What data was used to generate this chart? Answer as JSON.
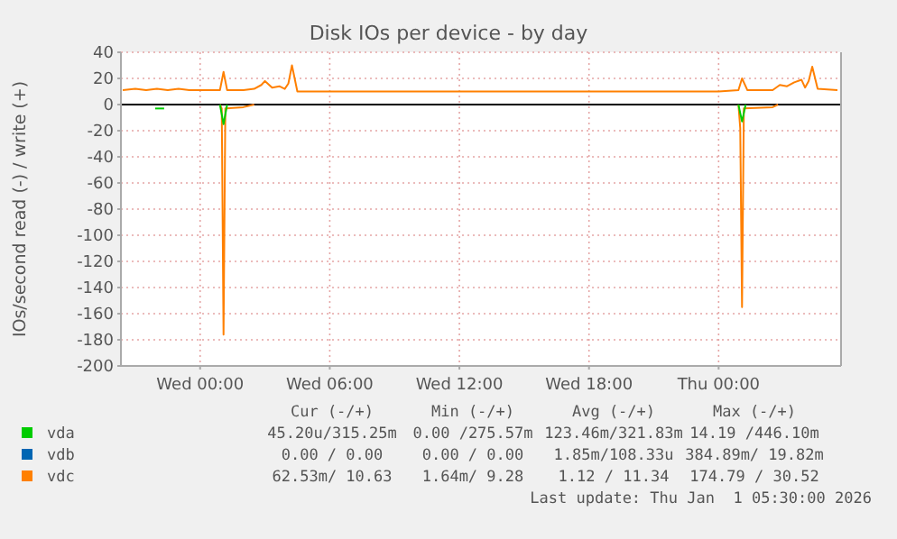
{
  "chart_data": {
    "type": "line",
    "title": "Disk IOs per device - by day",
    "ylabel": "IOs/second read (-) / write (+)",
    "xlim": [
      "2025-12-30T20:20",
      "2026-01-01T05:40"
    ],
    "xticks": [
      {
        "value": "2025-12-31T00:00",
        "label": "Wed 00:00"
      },
      {
        "value": "2025-12-31T06:00",
        "label": "Wed 06:00"
      },
      {
        "value": "2025-12-31T12:00",
        "label": "Wed 12:00"
      },
      {
        "value": "2025-12-31T18:00",
        "label": "Wed 18:00"
      },
      {
        "value": "2026-01-01T00:00",
        "label": "Thu 00:00"
      }
    ],
    "ylim": [
      -200,
      40
    ],
    "yticks": [
      -200,
      -180,
      -160,
      -140,
      -120,
      -100,
      -80,
      -60,
      -40,
      -20,
      0,
      20,
      40
    ],
    "grid": true,
    "legend": "bottom",
    "line_style": "solid",
    "marker": "none",
    "ref_lines": [
      {
        "axis": "y",
        "value": 0,
        "color": "#000000"
      }
    ],
    "series": [
      {
        "name": "vda",
        "color": "#00cc00",
        "x": [
          "2025-12-31T00:55",
          "2025-12-31T01:05",
          "2025-12-31T01:15",
          "2025-12-31T12:00",
          "2026-01-01T00:55",
          "2026-01-01T01:05",
          "2026-01-01T01:15"
        ],
        "values": [
          0,
          -15,
          0,
          null,
          0,
          -13,
          0
        ]
      },
      {
        "color": "#00cc00",
        "x": [
          "2025-12-30T21:55",
          "2025-12-30T22:08",
          "2025-12-30T22:20"
        ],
        "values": [
          -3,
          -3,
          -3
        ]
      },
      {
        "name": "vdb",
        "color": "#0066b3"
      },
      {
        "color": "#ff8000",
        "x": [
          "2025-12-31T00:55",
          "2025-12-31T01:00",
          "2025-12-31T01:05",
          "2025-12-31T01:10",
          "2025-12-31T02:00",
          "2025-12-31T02:30",
          "2025-12-31T12:00",
          "2026-01-01T00:55",
          "2026-01-01T01:00",
          "2026-01-01T01:05",
          "2026-01-01T01:10",
          "2026-01-01T02:30",
          "2026-01-01T02:45"
        ],
        "values": [
          0,
          -3,
          -176,
          -3,
          -2,
          0,
          null,
          0,
          -18,
          -155,
          -3,
          -2,
          0
        ]
      },
      {
        "name": "vdc",
        "color": "#ff8000",
        "x": [
          "2025-12-30T20:25",
          "2025-12-30T21:00",
          "2025-12-30T21:30",
          "2025-12-30T22:00",
          "2025-12-30T22:30",
          "2025-12-30T23:00",
          "2025-12-30T23:30",
          "2025-12-31T00:30",
          "2025-12-31T00:55",
          "2025-12-31T01:05",
          "2025-12-31T01:15",
          "2025-12-31T02:00",
          "2025-12-31T02:30",
          "2025-12-31T02:50",
          "2025-12-31T03:00",
          "2025-12-31T03:20",
          "2025-12-31T03:40",
          "2025-12-31T03:55",
          "2025-12-31T04:05",
          "2025-12-31T04:15",
          "2025-12-31T04:30",
          "2025-12-31T08:00",
          "2025-12-31T12:00",
          "2025-12-31T16:00",
          "2025-12-31T20:00",
          "2026-01-01T00:00",
          "2026-01-01T00:55",
          "2026-01-01T01:05",
          "2026-01-01T01:20",
          "2026-01-01T02:30",
          "2026-01-01T02:50",
          "2026-01-01T03:10",
          "2026-01-01T03:30",
          "2026-01-01T03:50",
          "2026-01-01T04:00",
          "2026-01-01T04:10",
          "2026-01-01T04:20",
          "2026-01-01T04:35",
          "2026-01-01T05:30"
        ],
        "values": [
          11,
          12,
          11,
          12,
          11,
          12,
          11,
          11,
          11,
          25,
          11,
          11,
          12,
          15,
          18,
          13,
          14,
          12,
          16,
          30,
          10,
          10,
          10,
          10,
          10,
          10,
          11,
          20,
          11,
          11,
          15,
          14,
          17,
          19,
          13,
          18,
          29,
          12,
          11
        ]
      }
    ],
    "annotations": [
      "Cur (-/+)",
      "Min (-/+)",
      "Avg (-/+)",
      "Max (-/+)",
      "45.20u/315.25m",
      "0.00 /275.57m",
      "123.46m/321.83m",
      "14.19 /446.10m",
      "0.00 / 0.00",
      "0.00 / 0.00",
      "1.85m/108.33u",
      "384.89m/ 19.82m",
      "62.53m/ 10.63",
      "1.64m/ 9.28",
      "1.12 / 11.34",
      "174.79 / 30.52",
      "Last update: Thu Jan  1 05:30:00 2026"
    ]
  }
}
